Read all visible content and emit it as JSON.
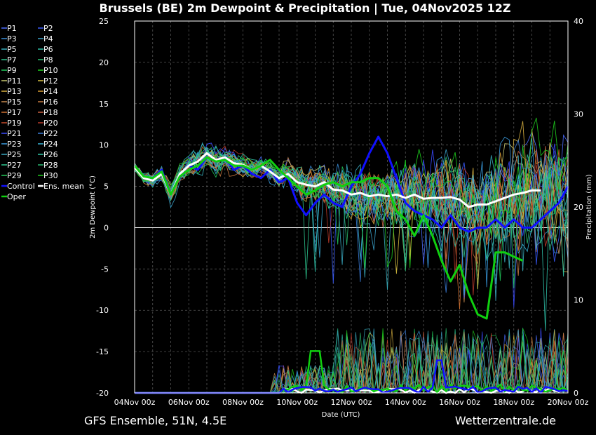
{
  "chart_data": {
    "type": "line",
    "title": "Brussels  (BE)  2m Dewpoint & Precipitation | Tue, 04Nov2025 12Z",
    "footer_left": "GFS Ensemble, 51N, 4.5E",
    "footer_right": "Wetterzentrale.de",
    "xlabel": "Date (UTC)",
    "ylabel": "2m Dewpoint (°C)",
    "y2label": "Precipitation (mm)",
    "ylim": [
      -20,
      25
    ],
    "y2lim": [
      0,
      40
    ],
    "xlim_days": [
      0,
      16
    ],
    "x_tick_labels": [
      "04Nov 00z",
      "06Nov 00z",
      "08Nov 00z",
      "10Nov 00z",
      "12Nov 00z",
      "14Nov 00z",
      "16Nov 00z",
      "18Nov 00z",
      "20Nov 00z"
    ],
    "y_tick_labels": [
      "25",
      "20",
      "15",
      "10",
      "5",
      "0",
      "-5",
      "-10",
      "-15",
      "-20"
    ],
    "y2_tick_labels": [
      "40",
      "30",
      "20",
      "10",
      "0"
    ],
    "grid": true,
    "legend_placement": "left",
    "legend": [
      {
        "name": "P1",
        "color": "#4a6cff"
      },
      {
        "name": "P2",
        "color": "#3a5cff"
      },
      {
        "name": "P3",
        "color": "#3b8fd9"
      },
      {
        "name": "P4",
        "color": "#3aa0c8"
      },
      {
        "name": "P5",
        "color": "#38b0c0"
      },
      {
        "name": "P6",
        "color": "#2fc0a8"
      },
      {
        "name": "P7",
        "color": "#2cc48e"
      },
      {
        "name": "P8",
        "color": "#29c070"
      },
      {
        "name": "P9",
        "color": "#20c85a"
      },
      {
        "name": "P10",
        "color": "#1ed21e"
      },
      {
        "name": "P11",
        "color": "#c8c870"
      },
      {
        "name": "P12",
        "color": "#d8c040"
      },
      {
        "name": "P13",
        "color": "#d8b040"
      },
      {
        "name": "P14",
        "color": "#d89a30"
      },
      {
        "name": "P15",
        "color": "#c88a50"
      },
      {
        "name": "P16",
        "color": "#c87a40"
      },
      {
        "name": "P17",
        "color": "#d07030"
      },
      {
        "name": "P18",
        "color": "#c86040"
      },
      {
        "name": "P19",
        "color": "#c84a2a"
      },
      {
        "name": "P20",
        "color": "#b83a2a"
      },
      {
        "name": "P21",
        "color": "#3a4aff"
      },
      {
        "name": "P22",
        "color": "#3a7cd8"
      },
      {
        "name": "P23",
        "color": "#3a9ce0"
      },
      {
        "name": "P24",
        "color": "#38b4d8"
      },
      {
        "name": "P25",
        "color": "#38a8c0"
      },
      {
        "name": "P26",
        "color": "#30c8a8"
      },
      {
        "name": "P27",
        "color": "#2ec890"
      },
      {
        "name": "P28",
        "color": "#28b870"
      },
      {
        "name": "P29",
        "color": "#22c85a"
      },
      {
        "name": "P30",
        "color": "#1ec81e"
      },
      {
        "name": "Control",
        "color": "#1010ff"
      },
      {
        "name": "Ens. mean",
        "color": "#ffffff"
      },
      {
        "name": "Oper",
        "color": "#10d010"
      }
    ],
    "series": [
      {
        "name": "Control",
        "color": "#1010ff",
        "width": 3,
        "values": [
          [
            0,
            7.5
          ],
          [
            0.5,
            6
          ],
          [
            1,
            6
          ],
          [
            1.5,
            7
          ],
          [
            2,
            4
          ],
          [
            2.5,
            6.5
          ],
          [
            3,
            7.5
          ],
          [
            3.5,
            7
          ],
          [
            4,
            8.5
          ],
          [
            4.5,
            8
          ],
          [
            5,
            8.5
          ],
          [
            5.5,
            7
          ],
          [
            6,
            7.5
          ],
          [
            6.5,
            6.5
          ],
          [
            7,
            6
          ],
          [
            7.5,
            7
          ],
          [
            8,
            5.5
          ],
          [
            8.5,
            6
          ],
          [
            9,
            3
          ],
          [
            9.5,
            1.5
          ],
          [
            10,
            3
          ],
          [
            10.5,
            4
          ],
          [
            11,
            3
          ],
          [
            11.5,
            2.5
          ],
          [
            12,
            5
          ],
          [
            12.5,
            6.5
          ],
          [
            13,
            9
          ],
          [
            13.5,
            11
          ],
          [
            14,
            9
          ],
          [
            14.5,
            6
          ],
          [
            15,
            3
          ],
          [
            15.5,
            2
          ],
          [
            16,
            1.5
          ],
          [
            16.5,
            1
          ],
          [
            17,
            0
          ],
          [
            17.5,
            1.5
          ],
          [
            18,
            0
          ],
          [
            18.5,
            -0.5
          ],
          [
            19,
            0
          ],
          [
            19.5,
            0
          ],
          [
            20,
            1
          ],
          [
            20.5,
            0
          ],
          [
            21,
            1
          ],
          [
            21.5,
            0
          ],
          [
            22,
            0
          ],
          [
            22.5,
            1
          ],
          [
            23,
            2
          ],
          [
            23.5,
            3
          ],
          [
            24,
            5
          ]
        ]
      },
      {
        "name": "Ens. mean",
        "color": "#ffffff",
        "width": 3,
        "values": [
          [
            0,
            7.3
          ],
          [
            0.5,
            6
          ],
          [
            1,
            5.7
          ],
          [
            1.5,
            6.5
          ],
          [
            2,
            4
          ],
          [
            2.5,
            6.5
          ],
          [
            3,
            7.5
          ],
          [
            3.5,
            8
          ],
          [
            4,
            9
          ],
          [
            4.5,
            8.2
          ],
          [
            5,
            8.5
          ],
          [
            5.5,
            7.8
          ],
          [
            6,
            7.6
          ],
          [
            6.5,
            7
          ],
          [
            7,
            7.5
          ],
          [
            7.5,
            6.8
          ],
          [
            8,
            6
          ],
          [
            8.5,
            6.5
          ],
          [
            9,
            5.5
          ],
          [
            9.5,
            5.2
          ],
          [
            10,
            5
          ],
          [
            10.5,
            5.5
          ],
          [
            11,
            4.6
          ],
          [
            11.5,
            4.5
          ],
          [
            12,
            4
          ],
          [
            12.5,
            4.2
          ],
          [
            13,
            3.8
          ],
          [
            13.5,
            4
          ],
          [
            14,
            3.8
          ],
          [
            14.5,
            4
          ],
          [
            15,
            3.6
          ],
          [
            15.5,
            4
          ],
          [
            16,
            3.5
          ],
          [
            16.5,
            3.6
          ],
          [
            17,
            3.6
          ],
          [
            17.5,
            3.7
          ],
          [
            18,
            3.4
          ],
          [
            18.5,
            2.5
          ],
          [
            19,
            2.8
          ],
          [
            19.5,
            2.8
          ],
          [
            20,
            3.2
          ],
          [
            20.5,
            3.6
          ],
          [
            21,
            4
          ],
          [
            21.5,
            4.2
          ],
          [
            22,
            4.5
          ],
          [
            22.5,
            4.5
          ]
        ]
      },
      {
        "name": "Oper",
        "color": "#10d010",
        "width": 3,
        "values": [
          [
            0,
            7.5
          ],
          [
            0.5,
            6.2
          ],
          [
            1,
            6
          ],
          [
            1.5,
            6.8
          ],
          [
            2,
            4
          ],
          [
            2.5,
            6.2
          ],
          [
            3,
            7
          ],
          [
            3.5,
            7.5
          ],
          [
            4,
            8.5
          ],
          [
            4.5,
            8
          ],
          [
            5,
            8.2
          ],
          [
            5.5,
            7.5
          ],
          [
            6,
            7.5
          ],
          [
            6.5,
            7
          ],
          [
            7,
            7.5
          ],
          [
            7.5,
            8.2
          ],
          [
            8,
            7
          ],
          [
            8.5,
            6
          ],
          [
            9,
            5
          ],
          [
            9.5,
            4
          ],
          [
            10,
            4.5
          ],
          [
            10.5,
            5.2
          ],
          [
            11,
            5.5
          ],
          [
            11.5,
            5
          ],
          [
            12,
            5.5
          ],
          [
            12.5,
            5.5
          ],
          [
            13,
            6
          ],
          [
            13.5,
            6
          ],
          [
            14,
            5
          ],
          [
            14.5,
            2
          ],
          [
            15,
            1
          ],
          [
            15.5,
            -1
          ],
          [
            16,
            1.5
          ],
          [
            16.5,
            -1
          ],
          [
            17,
            -4
          ],
          [
            17.5,
            -6.5
          ],
          [
            18,
            -4.5
          ],
          [
            18.5,
            -8
          ],
          [
            19,
            -10.5
          ],
          [
            19.5,
            -11
          ],
          [
            20,
            -3
          ],
          [
            20.5,
            -3
          ],
          [
            21,
            -3.5
          ],
          [
            21.5,
            -4
          ]
        ]
      }
    ]
  }
}
